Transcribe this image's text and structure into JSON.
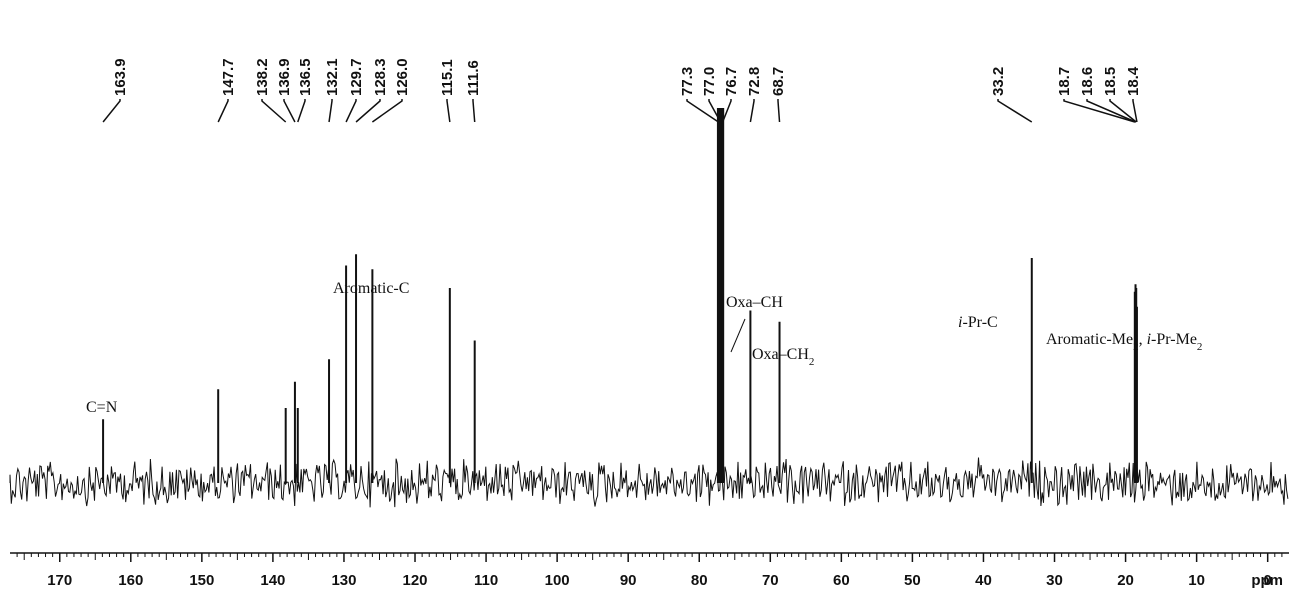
{
  "chart_data": {
    "type": "line",
    "title": "",
    "xlabel": "ppm",
    "ylabel": "",
    "x_reversed": true,
    "xlim": [
      177,
      -3
    ],
    "x_ticks": [
      170,
      160,
      150,
      140,
      130,
      120,
      110,
      100,
      90,
      80,
      70,
      60,
      50,
      40,
      30,
      20,
      10,
      0
    ],
    "x_tick_labels": [
      "170",
      "160",
      "150",
      "140",
      "130",
      "120",
      "110",
      "100",
      "90",
      "80",
      "70",
      "60",
      "50",
      "40",
      "30",
      "20",
      "10",
      "0"
    ],
    "x_unit_label": "ppm",
    "grid": false,
    "peaks": [
      {
        "ppm": 163.9,
        "height": 0.17
      },
      {
        "ppm": 147.7,
        "height": 0.25
      },
      {
        "ppm": 138.2,
        "height": 0.2
      },
      {
        "ppm": 136.9,
        "height": 0.27
      },
      {
        "ppm": 136.5,
        "height": 0.2
      },
      {
        "ppm": 132.1,
        "height": 0.33
      },
      {
        "ppm": 129.7,
        "height": 0.58
      },
      {
        "ppm": 128.3,
        "height": 0.61
      },
      {
        "ppm": 126.0,
        "height": 0.57
      },
      {
        "ppm": 115.1,
        "height": 0.52
      },
      {
        "ppm": 111.6,
        "height": 0.38
      },
      {
        "ppm": 77.3,
        "height": 1.0
      },
      {
        "ppm": 77.0,
        "height": 1.0
      },
      {
        "ppm": 76.7,
        "height": 1.0
      },
      {
        "ppm": 72.8,
        "height": 0.46
      },
      {
        "ppm": 68.7,
        "height": 0.43
      },
      {
        "ppm": 33.2,
        "height": 0.6
      },
      {
        "ppm": 18.7,
        "height": 0.51
      },
      {
        "ppm": 18.6,
        "height": 0.53
      },
      {
        "ppm": 18.5,
        "height": 0.52
      },
      {
        "ppm": 18.4,
        "height": 0.47
      }
    ],
    "peak_labels": [
      "163.9",
      "147.7",
      "138.2",
      "136.9",
      "136.5",
      "132.1",
      "129.7",
      "128.3",
      "126.0",
      "115.1",
      "111.6",
      "77.3",
      "77.0",
      "76.7",
      "72.8",
      "68.7",
      "33.2",
      "18.7",
      "18.6",
      "18.5",
      "18.4"
    ],
    "annotations": [
      {
        "text": "C=N",
        "ppm": 163.9
      },
      {
        "text": "Aromatic-C",
        "ppm": 132.0
      },
      {
        "text": "Oxa–CH",
        "ppm": 72.8
      },
      {
        "text": "Oxa–CH",
        "sub": "2",
        "ppm": 68.7
      },
      {
        "text_italic": "i",
        "text": "-Pr-C",
        "ppm": 33.2
      },
      {
        "text": "Aromatic-Me",
        "sub": "2",
        "text2_italic": "i",
        "text2": "-Pr-Me",
        "sub2": "2",
        "ppm": 18.6
      }
    ]
  }
}
